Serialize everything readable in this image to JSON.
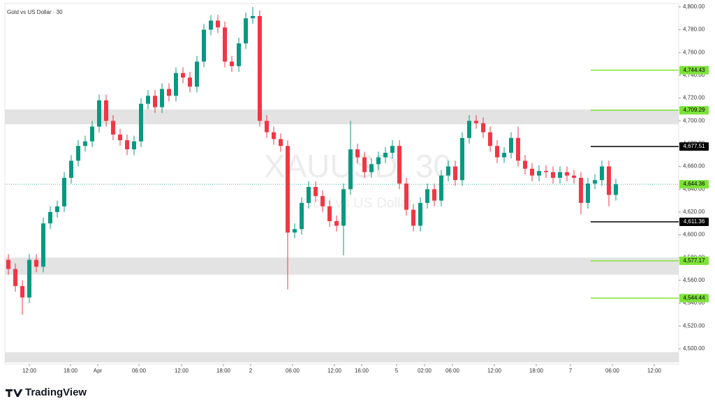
{
  "chart_data": {
    "type": "candlestick",
    "title": "Gold vs US Dollar · 30",
    "watermark": "XAUUSD, 30",
    "watermark_sub": "Gold vs US Dollar",
    "open": [
      4578,
      4570,
      4555,
      4545,
      4578,
      4572,
      4610,
      4620,
      4625,
      4650,
      4665,
      4678,
      4682,
      4695,
      4718,
      4700,
      4688,
      4683,
      4675,
      4682,
      4715,
      4722,
      4712,
      4728,
      4722,
      4742,
      4738,
      4730,
      4752,
      4780,
      4788,
      4782,
      4752,
      4748,
      4768,
      4790,
      4792,
      4700,
      4690,
      4684,
      4678,
      4602,
      4605,
      4628,
      4642,
      4634,
      4625,
      4612,
      4608,
      4640,
      4675,
      4668,
      4655,
      4662,
      4668,
      4672,
      4678,
      4645,
      4622,
      4608,
      4628,
      4640,
      4630,
      4652,
      4660,
      4648,
      4685,
      4700,
      4698,
      4690,
      4678,
      4668,
      4672,
      4685,
      4665,
      4658,
      4652,
      4656,
      4655,
      4650,
      4655,
      4652,
      4650,
      4628,
      4645,
      4648,
      4660,
      4635
    ],
    "high": [
      4583,
      4575,
      4560,
      4583,
      4583,
      4615,
      4625,
      4630,
      4655,
      4670,
      4683,
      4687,
      4700,
      4723,
      4723,
      4705,
      4693,
      4688,
      4687,
      4720,
      4727,
      4727,
      4733,
      4733,
      4747,
      4747,
      4743,
      4757,
      4785,
      4793,
      4793,
      4787,
      4757,
      4773,
      4795,
      4800,
      4797,
      4705,
      4695,
      4689,
      4683,
      4610,
      4633,
      4647,
      4647,
      4639,
      4630,
      4617,
      4645,
      4700,
      4680,
      4673,
      4667,
      4673,
      4677,
      4683,
      4683,
      4650,
      4627,
      4633,
      4645,
      4645,
      4657,
      4665,
      4665,
      4690,
      4705,
      4705,
      4703,
      4695,
      4683,
      4677,
      4690,
      4695,
      4670,
      4663,
      4661,
      4661,
      4660,
      4660,
      4660,
      4657,
      4655,
      4650,
      4653,
      4665,
      4665,
      4649
    ],
    "low": [
      4565,
      4550,
      4530,
      4540,
      4567,
      4567,
      4605,
      4615,
      4620,
      4645,
      4660,
      4673,
      4677,
      4690,
      4695,
      4683,
      4678,
      4670,
      4670,
      4677,
      4710,
      4707,
      4707,
      4717,
      4717,
      4733,
      4725,
      4725,
      4747,
      4775,
      4777,
      4747,
      4743,
      4743,
      4763,
      4785,
      4695,
      4685,
      4679,
      4673,
      4552,
      4597,
      4600,
      4623,
      4629,
      4620,
      4607,
      4603,
      4582,
      4635,
      4663,
      4650,
      4650,
      4657,
      4663,
      4667,
      4640,
      4617,
      4603,
      4603,
      4623,
      4625,
      4625,
      4647,
      4643,
      4643,
      4680,
      4693,
      4685,
      4673,
      4663,
      4663,
      4667,
      4660,
      4653,
      4647,
      4647,
      4650,
      4645,
      4645,
      4647,
      4645,
      4618,
      4623,
      4640,
      4643,
      4625,
      4630
    ],
    "close": [
      4570,
      4555,
      4545,
      4578,
      4572,
      4610,
      4620,
      4625,
      4650,
      4665,
      4678,
      4682,
      4695,
      4718,
      4700,
      4688,
      4683,
      4675,
      4682,
      4715,
      4722,
      4712,
      4728,
      4722,
      4742,
      4738,
      4730,
      4752,
      4780,
      4788,
      4782,
      4752,
      4748,
      4768,
      4790,
      4792,
      4700,
      4690,
      4684,
      4678,
      4602,
      4605,
      4628,
      4642,
      4634,
      4625,
      4612,
      4608,
      4640,
      4675,
      4668,
      4655,
      4662,
      4668,
      4672,
      4678,
      4645,
      4622,
      4608,
      4628,
      4640,
      4630,
      4652,
      4660,
      4648,
      4685,
      4700,
      4698,
      4690,
      4678,
      4668,
      4672,
      4685,
      4665,
      4658,
      4652,
      4656,
      4655,
      4650,
      4655,
      4652,
      4650,
      4628,
      4645,
      4648,
      4660,
      4635,
      4644.36
    ],
    "up_color": "#089981",
    "down_color": "#f23645",
    "xlim": [
      0,
      96.5
    ],
    "xticks": [
      {
        "value": 3.5,
        "label": "12:00"
      },
      {
        "value": 9.4,
        "label": "18:00"
      },
      {
        "value": 13.3,
        "label": "Apr"
      },
      {
        "value": 19.2,
        "label": "06:00"
      },
      {
        "value": 25.3,
        "label": "12:00"
      },
      {
        "value": 31.3,
        "label": "18:00"
      },
      {
        "value": 35.2,
        "label": "2"
      },
      {
        "value": 41.2,
        "label": "06:00"
      },
      {
        "value": 47.2,
        "label": "12:00"
      },
      {
        "value": 51.1,
        "label": "16:00"
      },
      {
        "value": 56.1,
        "label": "5"
      },
      {
        "value": 60.1,
        "label": "02:00"
      },
      {
        "value": 64.1,
        "label": "06:00"
      },
      {
        "value": 70.1,
        "label": "12:00"
      },
      {
        "value": 76.1,
        "label": "18:00"
      },
      {
        "value": 81,
        "label": "7"
      },
      {
        "value": 87,
        "label": "06:00"
      },
      {
        "value": 93,
        "label": "12:00"
      }
    ],
    "ylim": [
      4486.5,
      4803
    ],
    "yticks": [
      {
        "value": 4500,
        "label": "4,500.00"
      },
      {
        "value": 4520,
        "label": "4,520.00"
      },
      {
        "value": 4540,
        "label": "4,540.00"
      },
      {
        "value": 4560,
        "label": "4,560.00"
      },
      {
        "value": 4580,
        "label": "4,580.00"
      },
      {
        "value": 4600,
        "label": "4,600.00"
      },
      {
        "value": 4620,
        "label": "4,620.00"
      },
      {
        "value": 4640,
        "label": "4,640.00"
      },
      {
        "value": 4660,
        "label": "4,660.00"
      },
      {
        "value": 4680,
        "label": "4,680.00"
      },
      {
        "value": 4700,
        "label": "4,700.00"
      },
      {
        "value": 4720,
        "label": "4,720.00"
      },
      {
        "value": 4740,
        "label": "4,740.00"
      },
      {
        "value": 4760,
        "label": "4,760.00"
      },
      {
        "value": 4780,
        "label": "4,780.00"
      },
      {
        "value": 4800,
        "label": "4,800.00"
      }
    ],
    "zones": [
      [
        4697,
        4710
      ],
      [
        4565,
        4580
      ],
      [
        4488,
        4497
      ]
    ],
    "zone_color": "#e3e3e3",
    "levels": [
      {
        "value": 4744.43,
        "label": "4,744.43",
        "color": "#7ee23a"
      },
      {
        "value": 4709.29,
        "label": "4,709.29",
        "color": "#7ee23a"
      },
      {
        "value": 4677.51,
        "label": "4,677.51",
        "color": "#000000"
      },
      {
        "value": 4611.36,
        "label": "4,611.36",
        "color": "#000000"
      },
      {
        "value": 4577.17,
        "label": "4,577.17",
        "color": "#7ee23a"
      },
      {
        "value": 4544.44,
        "label": "4,544.44",
        "color": "#7ee23a"
      }
    ],
    "last_price": {
      "value": 4644.36,
      "label": "4,644.36",
      "color": "#7ee23a"
    }
  },
  "brand": "TradingView"
}
